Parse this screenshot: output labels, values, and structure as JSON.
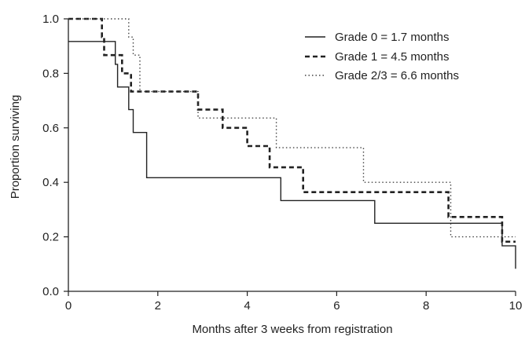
{
  "chart_data": {
    "type": "line",
    "title": "",
    "xlabel": "Months after 3 weeks from registration",
    "ylabel": "Proportion surviving",
    "xlim": [
      0,
      10
    ],
    "ylim": [
      0,
      1.0
    ],
    "x_ticks": [
      0,
      2,
      4,
      6,
      8,
      10
    ],
    "y_ticks": [
      0.0,
      0.2,
      0.4,
      0.6,
      0.8,
      1.0
    ],
    "x_tick_labels": [
      "0",
      "2",
      "4",
      "6",
      "8",
      "10"
    ],
    "y_tick_labels": [
      "0.0",
      "0.2",
      "0.4",
      "0.6",
      "0.8",
      "1.0"
    ],
    "grid": false,
    "legend_position": "top-right",
    "step": true,
    "series": [
      {
        "name": "Grade 0 = 1.7 months",
        "line_style": "solid",
        "color": "#222222",
        "x": [
          0,
          1.05,
          1.1,
          1.35,
          1.45,
          1.75,
          4.75,
          6.85,
          9.7,
          10.0
        ],
        "y": [
          0.917,
          0.833,
          0.75,
          0.667,
          0.583,
          0.417,
          0.333,
          0.25,
          0.167,
          0.083
        ]
      },
      {
        "name": "Grade 1 = 4.5 months",
        "line_style": "dashed",
        "color": "#222222",
        "x": [
          0,
          0.75,
          0.8,
          1.0,
          1.2,
          1.4,
          1.55,
          2.9,
          3.45,
          4.0,
          4.5,
          5.25,
          8.5,
          8.55,
          9.7,
          10.0
        ],
        "y": [
          1.0,
          0.933,
          0.867,
          0.867,
          0.8,
          0.733,
          0.733,
          0.667,
          0.6,
          0.533,
          0.455,
          0.364,
          0.273,
          0.273,
          0.182,
          0.182
        ],
        "steps_y": [
          1.0,
          0.933,
          0.867,
          0.8,
          0.733,
          0.667,
          0.6,
          0.533,
          0.455,
          0.364,
          0.273,
          0.182
        ]
      },
      {
        "name": "Grade 2/3 = 6.6 months",
        "line_style": "dotted",
        "color": "#444444",
        "x": [
          0,
          1.35,
          1.45,
          1.6,
          2.9,
          4.65,
          6.6,
          8.55,
          9.75,
          10.0
        ],
        "y": [
          1.0,
          0.933,
          0.867,
          0.733,
          0.636,
          0.527,
          0.4,
          0.2,
          0.2,
          0.2
        ]
      }
    ]
  }
}
